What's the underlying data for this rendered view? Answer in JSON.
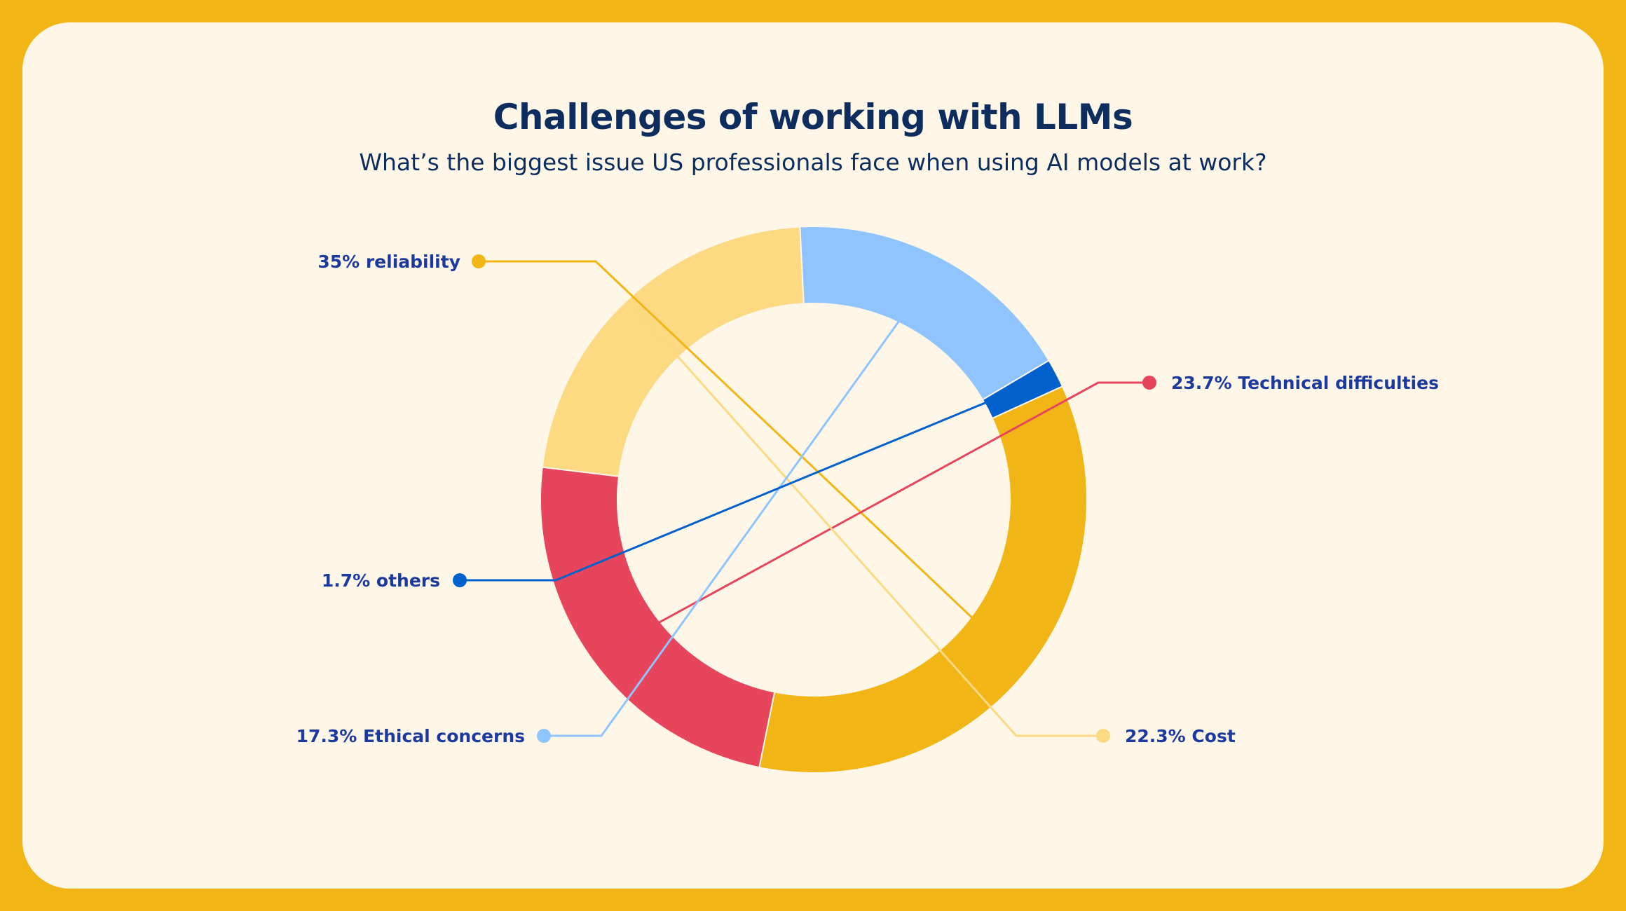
{
  "title": "Challenges of working with LLMs",
  "subtitle": "What’s the biggest issue US professionals face when using AI models at work?",
  "chart_data": {
    "type": "pie",
    "donut": true,
    "slices": [
      {
        "label": "35% reliability",
        "value": 35.0,
        "color": "#F2B516"
      },
      {
        "label": "23.7% Technical difficulties",
        "value": 23.7,
        "color": "#E6455C"
      },
      {
        "label": "22.3% Cost",
        "value": 22.3,
        "color": "#FDD981"
      },
      {
        "label": "17.3% Ethical concerns",
        "value": 17.3,
        "color": "#8FC4FF"
      },
      {
        "label": "1.7% others",
        "value": 1.7,
        "color": "#0061CC"
      }
    ]
  }
}
